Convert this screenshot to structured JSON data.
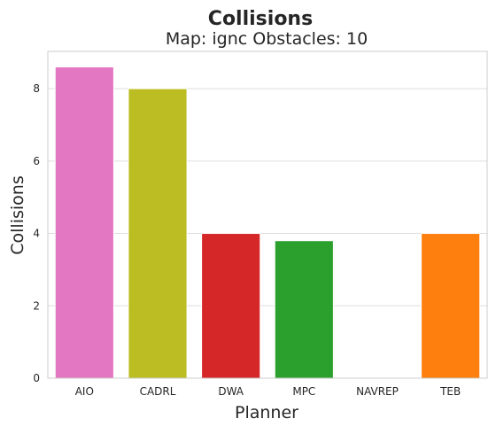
{
  "chart_data": {
    "type": "bar",
    "title": "Collisions",
    "subtitle": "Map: ignc Obstacles: 10",
    "xlabel": "Planner",
    "ylabel": "Collisions",
    "categories": [
      "AIO",
      "CADRL",
      "DWA",
      "MPC",
      "NAVREP",
      "TEB"
    ],
    "values": [
      8.6,
      8.0,
      4.0,
      3.8,
      0,
      4.0
    ],
    "bar_colors": [
      "#e377c2",
      "#bcbd22",
      "#d62728",
      "#2ca02c",
      "#7f7f7f",
      "#ff7f0e"
    ],
    "ylim": [
      0,
      9.03
    ],
    "yticks": [
      0,
      2,
      4,
      6,
      8
    ],
    "grid": true
  }
}
